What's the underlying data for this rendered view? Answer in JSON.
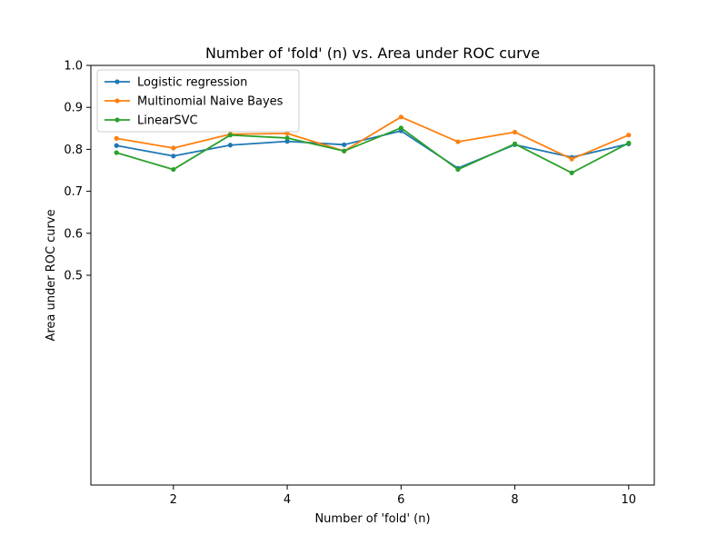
{
  "chart_data": {
    "type": "line",
    "title": "Number of 'fold' (n) vs. Area under ROC curve",
    "xlabel": "Number of 'fold' (n)",
    "ylabel": "Area under ROC curve",
    "x": [
      1,
      2,
      3,
      4,
      5,
      6,
      7,
      8,
      9,
      10
    ],
    "xlim": [
      0.55,
      10.45
    ],
    "ylim": [
      0.0,
      1.0
    ],
    "xticks": [
      2,
      4,
      6,
      8,
      10
    ],
    "yticks": [
      0.5,
      0.6,
      0.7,
      0.8,
      0.9,
      1.0
    ],
    "ytick_labels": [
      "0.5",
      "0.6",
      "0.7",
      "0.8",
      "0.9",
      "1.0"
    ],
    "grid": false,
    "legend_position": "top-left",
    "series": [
      {
        "name": "Logistic regression",
        "color": "#1f77b4",
        "values": [
          0.809,
          0.784,
          0.81,
          0.819,
          0.811,
          0.844,
          0.755,
          0.811,
          0.781,
          0.813
        ]
      },
      {
        "name": "Multinomial Naive Bayes",
        "color": "#ff7f0e",
        "values": [
          0.826,
          0.803,
          0.836,
          0.838,
          0.796,
          0.877,
          0.818,
          0.841,
          0.777,
          0.834
        ]
      },
      {
        "name": "LinearSVC",
        "color": "#2ca02c",
        "values": [
          0.792,
          0.752,
          0.834,
          0.827,
          0.796,
          0.851,
          0.752,
          0.813,
          0.744,
          0.815
        ]
      }
    ]
  }
}
